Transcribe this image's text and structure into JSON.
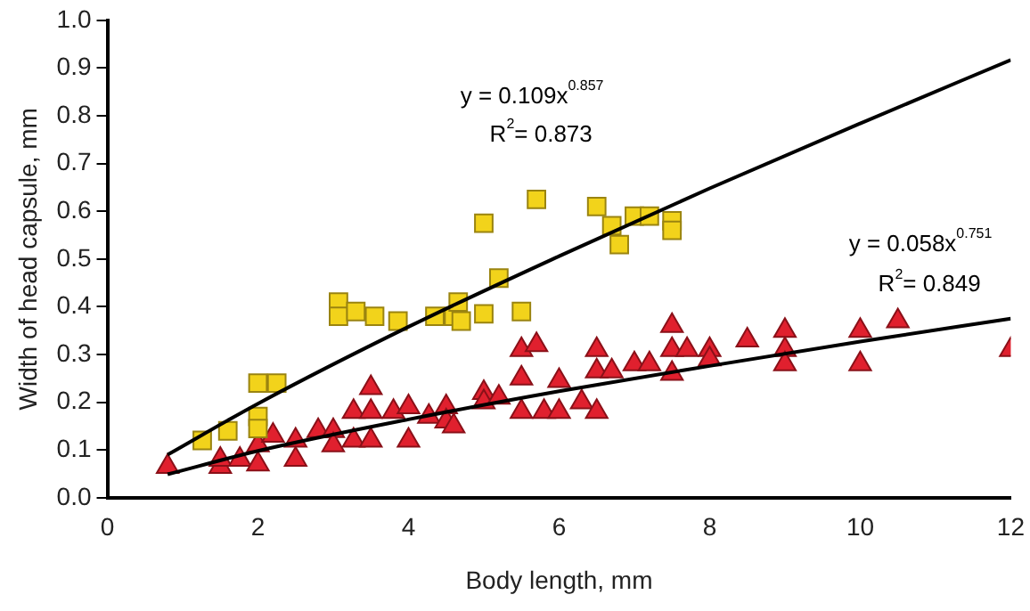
{
  "chart_data": {
    "type": "scatter",
    "xlabel": "Body length, mm",
    "ylabel": "Width of head capsule, mm",
    "xlim": [
      0,
      12
    ],
    "xticks": [
      0,
      2,
      4,
      6,
      8,
      10,
      12
    ],
    "ylim": [
      0,
      1
    ],
    "yticks": [
      {
        "value": 0,
        "label": "0.0"
      },
      {
        "value": 0.1,
        "label": "0.1"
      },
      {
        "value": 0.2,
        "label": "0.2"
      },
      {
        "value": 0.3,
        "label": "0.3"
      },
      {
        "value": 0.4,
        "label": "0.4"
      },
      {
        "value": 0.5,
        "label": "0.5"
      },
      {
        "value": 0.6,
        "label": "0.6"
      },
      {
        "value": 0.7,
        "label": "0.7"
      },
      {
        "value": 0.8,
        "label": "0.8"
      },
      {
        "value": 0.9,
        "label": "0.9"
      },
      {
        "value": 1,
        "label": "1.0"
      }
    ],
    "grid": false,
    "legend": false,
    "series": [
      {
        "type": "scatter",
        "marker": "square",
        "color": "#f2d31b",
        "x": [
          1.26,
          1.6,
          2.0,
          2.0,
          2.0,
          2.25,
          3.07,
          3.07,
          3.3,
          3.55,
          3.86,
          4.35,
          4.6,
          4.66,
          4.7,
          5.0,
          5.5,
          5.2,
          5.0,
          5.7,
          6.5,
          6.7,
          6.8,
          7.0,
          7.2,
          7.5,
          7.5
        ],
        "values": [
          0.12,
          0.14,
          0.17,
          0.145,
          0.24,
          0.24,
          0.41,
          0.38,
          0.39,
          0.38,
          0.37,
          0.38,
          0.38,
          0.41,
          0.37,
          0.385,
          0.39,
          0.46,
          0.575,
          0.625,
          0.61,
          0.57,
          0.53,
          0.59,
          0.59,
          0.58,
          0.56
        ]
      },
      {
        "type": "scatter",
        "marker": "triangle",
        "color": "#e0202e",
        "x": [
          0.8,
          1.5,
          1.5,
          1.76,
          2.0,
          2.0,
          2.2,
          2.5,
          2.5,
          2.8,
          3.0,
          3.0,
          3.27,
          3.27,
          3.5,
          3.5,
          3.5,
          3.8,
          4.0,
          4.0,
          4.27,
          4.5,
          4.5,
          4.6,
          5.0,
          5.0,
          5.2,
          5.5,
          5.7,
          5.5,
          5.5,
          5.8,
          6.0,
          6.0,
          6.3,
          6.5,
          6.5,
          6.5,
          6.7,
          7.0,
          7.2,
          7.5,
          7.5,
          7.5,
          7.7,
          8.0,
          8.0,
          8.5,
          9.0,
          9.0,
          9.0,
          10.0,
          10.0,
          10.5,
          12.0
        ],
        "values": [
          0.065,
          0.065,
          0.08,
          0.08,
          0.07,
          0.11,
          0.13,
          0.12,
          0.08,
          0.14,
          0.14,
          0.11,
          0.18,
          0.12,
          0.23,
          0.18,
          0.12,
          0.18,
          0.19,
          0.12,
          0.17,
          0.19,
          0.16,
          0.15,
          0.22,
          0.2,
          0.21,
          0.31,
          0.32,
          0.25,
          0.18,
          0.18,
          0.245,
          0.18,
          0.2,
          0.31,
          0.265,
          0.18,
          0.265,
          0.28,
          0.28,
          0.36,
          0.31,
          0.26,
          0.31,
          0.31,
          0.29,
          0.33,
          0.35,
          0.31,
          0.28,
          0.35,
          0.28,
          0.37,
          0.31
        ]
      },
      {
        "type": "line",
        "marker": "none",
        "color": "#000000",
        "x": [
          0.8,
          2,
          4,
          6,
          8,
          10,
          12
        ],
        "values": [
          0.09,
          0.197,
          0.358,
          0.506,
          0.648,
          0.784,
          0.917
        ]
      },
      {
        "type": "line",
        "marker": "none",
        "color": "#000000",
        "x": [
          0.8,
          2,
          4,
          6,
          8,
          10,
          12
        ],
        "values": [
          0.049,
          0.098,
          0.164,
          0.223,
          0.276,
          0.327,
          0.375
        ]
      }
    ],
    "annotations": [
      "y = 0.109x$^{0.857}$",
      "R$^{2}$= 0.873",
      "y = 0.058x$^{0.751}$",
      "R$^{2}$= 0.849"
    ]
  }
}
